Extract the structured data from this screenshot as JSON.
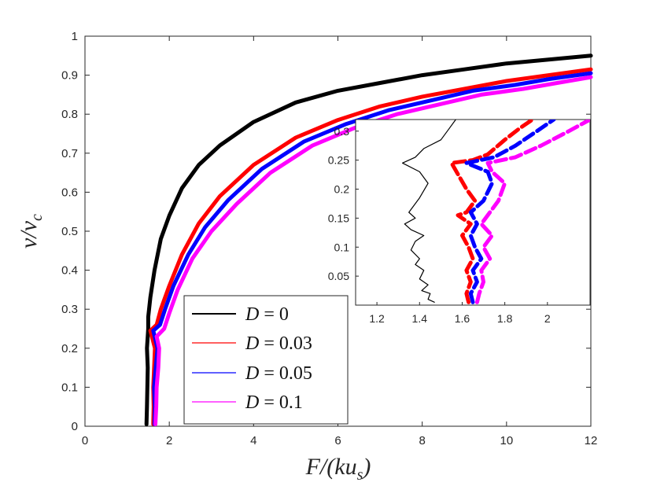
{
  "chart_data": {
    "type": "line",
    "title": "",
    "xlabel": "F/(ku_s)",
    "ylabel": "v/v_c",
    "xlabel_parts": {
      "main": "F/(ku",
      "sub": "s",
      "end": ")"
    },
    "ylabel_parts": {
      "main": "v/v",
      "sub": "c"
    },
    "xlim": [
      0,
      12
    ],
    "ylim": [
      0,
      1
    ],
    "xticks": [
      "0",
      "2",
      "4",
      "6",
      "8",
      "10",
      "12"
    ],
    "yticks": [
      "0",
      "0.1",
      "0.2",
      "0.3",
      "0.4",
      "0.5",
      "0.6",
      "0.7",
      "0.8",
      "0.9",
      "1"
    ],
    "legend_position": "bottom-left",
    "series": [
      {
        "name": "D = 0",
        "label_var": "D",
        "label_val": "= 0",
        "color": "#000000",
        "points": [
          [
            1.46,
            0.005
          ],
          [
            1.47,
            0.05
          ],
          [
            1.48,
            0.1
          ],
          [
            1.49,
            0.15
          ],
          [
            1.47,
            0.2
          ],
          [
            1.5,
            0.25
          ],
          [
            1.5,
            0.28
          ],
          [
            1.55,
            0.33
          ],
          [
            1.65,
            0.4
          ],
          [
            1.8,
            0.48
          ],
          [
            2.0,
            0.54
          ],
          [
            2.3,
            0.61
          ],
          [
            2.7,
            0.67
          ],
          [
            3.2,
            0.72
          ],
          [
            4.0,
            0.78
          ],
          [
            5.0,
            0.83
          ],
          [
            6.0,
            0.86
          ],
          [
            7.0,
            0.88
          ],
          [
            8.0,
            0.9
          ],
          [
            9.0,
            0.915
          ],
          [
            10.0,
            0.93
          ],
          [
            11.0,
            0.94
          ],
          [
            12.0,
            0.95
          ]
        ]
      },
      {
        "name": "D = 0.03",
        "label_var": "D",
        "label_val": "= 0.03",
        "color": "#ff0000",
        "points": [
          [
            1.62,
            0.005
          ],
          [
            1.63,
            0.05
          ],
          [
            1.62,
            0.1
          ],
          [
            1.64,
            0.15
          ],
          [
            1.66,
            0.2
          ],
          [
            1.55,
            0.245
          ],
          [
            1.7,
            0.26
          ],
          [
            1.8,
            0.3
          ],
          [
            2.0,
            0.36
          ],
          [
            2.3,
            0.44
          ],
          [
            2.7,
            0.52
          ],
          [
            3.2,
            0.59
          ],
          [
            4.0,
            0.67
          ],
          [
            5.0,
            0.74
          ],
          [
            6.0,
            0.785
          ],
          [
            7.0,
            0.82
          ],
          [
            8.0,
            0.845
          ],
          [
            9.0,
            0.865
          ],
          [
            10.0,
            0.885
          ],
          [
            11.0,
            0.9
          ],
          [
            12.0,
            0.915
          ]
        ]
      },
      {
        "name": "D = 0.05",
        "label_var": "D",
        "label_val": "= 0.05",
        "color": "#0000ff",
        "points": [
          [
            1.65,
            0.005
          ],
          [
            1.66,
            0.05
          ],
          [
            1.64,
            0.1
          ],
          [
            1.68,
            0.15
          ],
          [
            1.72,
            0.2
          ],
          [
            1.62,
            0.245
          ],
          [
            1.78,
            0.26
          ],
          [
            1.9,
            0.3
          ],
          [
            2.1,
            0.36
          ],
          [
            2.45,
            0.44
          ],
          [
            2.85,
            0.51
          ],
          [
            3.4,
            0.58
          ],
          [
            4.2,
            0.66
          ],
          [
            5.2,
            0.73
          ],
          [
            6.2,
            0.775
          ],
          [
            7.2,
            0.81
          ],
          [
            8.2,
            0.835
          ],
          [
            9.2,
            0.86
          ],
          [
            10.2,
            0.875
          ],
          [
            11.0,
            0.89
          ],
          [
            12.0,
            0.905
          ]
        ]
      },
      {
        "name": "D = 0.1",
        "label_var": "D",
        "label_val": "= 0.1",
        "color": "#ff00ff",
        "points": [
          [
            1.67,
            0.005
          ],
          [
            1.69,
            0.05
          ],
          [
            1.7,
            0.1
          ],
          [
            1.74,
            0.15
          ],
          [
            1.76,
            0.2
          ],
          [
            1.7,
            0.23
          ],
          [
            1.88,
            0.25
          ],
          [
            2.0,
            0.29
          ],
          [
            2.2,
            0.35
          ],
          [
            2.55,
            0.43
          ],
          [
            3.0,
            0.5
          ],
          [
            3.6,
            0.57
          ],
          [
            4.4,
            0.65
          ],
          [
            5.4,
            0.72
          ],
          [
            6.4,
            0.765
          ],
          [
            7.4,
            0.8
          ],
          [
            8.4,
            0.825
          ],
          [
            9.4,
            0.85
          ],
          [
            10.4,
            0.865
          ],
          [
            11.2,
            0.88
          ],
          [
            12.0,
            0.895
          ]
        ]
      }
    ],
    "inset": {
      "xlim": [
        1.1,
        2.2
      ],
      "ylim": [
        0,
        0.32
      ],
      "xticks": [
        "1.2",
        "1.4",
        "1.6",
        "1.8",
        "2"
      ],
      "yticks": [
        "0.05",
        "0.1",
        "0.15",
        "0.2",
        "0.25",
        "0.3"
      ],
      "series": [
        {
          "name": "D = 0",
          "color": "#000000",
          "points": [
            [
              1.47,
              0.005
            ],
            [
              1.44,
              0.01
            ],
            [
              1.45,
              0.02
            ],
            [
              1.41,
              0.025
            ],
            [
              1.44,
              0.035
            ],
            [
              1.4,
              0.045
            ],
            [
              1.42,
              0.06
            ],
            [
              1.38,
              0.07
            ],
            [
              1.4,
              0.08
            ],
            [
              1.36,
              0.095
            ],
            [
              1.38,
              0.11
            ],
            [
              1.42,
              0.12
            ],
            [
              1.36,
              0.13
            ],
            [
              1.33,
              0.14
            ],
            [
              1.38,
              0.15
            ],
            [
              1.35,
              0.16
            ],
            [
              1.4,
              0.185
            ],
            [
              1.44,
              0.21
            ],
            [
              1.4,
              0.23
            ],
            [
              1.32,
              0.245
            ],
            [
              1.38,
              0.255
            ],
            [
              1.42,
              0.27
            ],
            [
              1.5,
              0.285
            ],
            [
              1.53,
              0.3
            ],
            [
              1.57,
              0.32
            ]
          ]
        },
        {
          "name": "D = 0.03",
          "color": "#ff0000",
          "points": [
            [
              1.63,
              0.005
            ],
            [
              1.62,
              0.02
            ],
            [
              1.64,
              0.04
            ],
            [
              1.62,
              0.06
            ],
            [
              1.65,
              0.08
            ],
            [
              1.63,
              0.1
            ],
            [
              1.6,
              0.12
            ],
            [
              1.64,
              0.14
            ],
            [
              1.58,
              0.155
            ],
            [
              1.62,
              0.16
            ],
            [
              1.66,
              0.18
            ],
            [
              1.62,
              0.2
            ],
            [
              1.55,
              0.245
            ],
            [
              1.65,
              0.25
            ],
            [
              1.72,
              0.26
            ],
            [
              1.8,
              0.285
            ],
            [
              1.87,
              0.305
            ],
            [
              1.93,
              0.32
            ]
          ]
        },
        {
          "name": "D = 0.05",
          "color": "#0000ff",
          "points": [
            [
              1.65,
              0.005
            ],
            [
              1.64,
              0.02
            ],
            [
              1.67,
              0.04
            ],
            [
              1.65,
              0.06
            ],
            [
              1.69,
              0.08
            ],
            [
              1.66,
              0.1
            ],
            [
              1.64,
              0.12
            ],
            [
              1.67,
              0.14
            ],
            [
              1.64,
              0.16
            ],
            [
              1.7,
              0.18
            ],
            [
              1.74,
              0.21
            ],
            [
              1.72,
              0.23
            ],
            [
              1.62,
              0.245
            ],
            [
              1.75,
              0.255
            ],
            [
              1.85,
              0.275
            ],
            [
              1.95,
              0.3
            ],
            [
              2.03,
              0.32
            ]
          ]
        },
        {
          "name": "D = 0.1",
          "color": "#ff00ff",
          "points": [
            [
              1.67,
              0.005
            ],
            [
              1.68,
              0.02
            ],
            [
              1.7,
              0.04
            ],
            [
              1.69,
              0.06
            ],
            [
              1.73,
              0.08
            ],
            [
              1.7,
              0.1
            ],
            [
              1.74,
              0.12
            ],
            [
              1.69,
              0.14
            ],
            [
              1.73,
              0.16
            ],
            [
              1.77,
              0.18
            ],
            [
              1.8,
              0.21
            ],
            [
              1.74,
              0.23
            ],
            [
              1.72,
              0.245
            ],
            [
              1.85,
              0.255
            ],
            [
              1.97,
              0.275
            ],
            [
              2.1,
              0.3
            ],
            [
              2.2,
              0.32
            ]
          ]
        }
      ]
    }
  }
}
